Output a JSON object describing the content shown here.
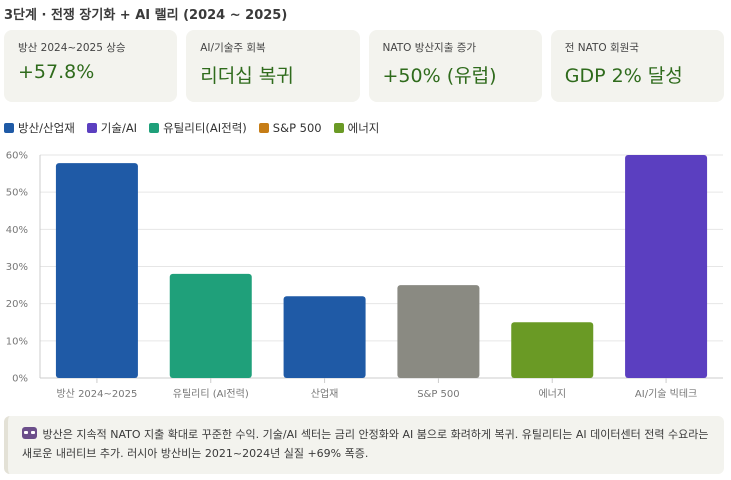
{
  "title": "3단계 · 전쟁 장기화 + AI 랠리 (2024 ~ 2025)",
  "cards": [
    {
      "label": "방산 2024~2025 상승",
      "value": "+57.8%"
    },
    {
      "label": "AI/기술주 회복",
      "value": "리더십 복귀"
    },
    {
      "label": "NATO 방산지출 증가",
      "value": "+50% (유럽)"
    },
    {
      "label": "전 NATO 회원국",
      "value": "GDP 2% 달성"
    }
  ],
  "legend": [
    {
      "label": "방산/산업재",
      "color": "#1f5aa6"
    },
    {
      "label": "기술/AI",
      "color": "#5b3fc0"
    },
    {
      "label": "유틸리티(AI전력)",
      "color": "#1fa07a"
    },
    {
      "label": "S&P 500",
      "color": "#c67d16"
    },
    {
      "label": "에너지",
      "color": "#6a9a25"
    }
  ],
  "chart_data": {
    "type": "bar",
    "categories": [
      "방산 2024~2025",
      "유틸리티 (AI전력)",
      "산업재",
      "S&P 500",
      "에너지",
      "AI/기술 빅테크"
    ],
    "values": [
      57.8,
      28,
      22,
      25,
      15,
      60
    ],
    "colors": [
      "#1f5aa6",
      "#1fa07a",
      "#1f5aa6",
      "#8a8a82",
      "#6a9a25",
      "#5b3fc0"
    ],
    "ylim": [
      0,
      60
    ],
    "yticks": [
      "0%",
      "10%",
      "20%",
      "30%",
      "40%",
      "50%",
      "60%"
    ],
    "grid": true
  },
  "note": {
    "icon": "robot-icon",
    "text": "방산은 지속적 NATO 지출 확대로 꾸준한 수익. 기술/AI 섹터는 금리 안정화와 AI 붐으로 화려하게 복귀. 유틸리티는 AI 데이터센터 전력 수요라는 새로운 내러티브 추가. 러시아 방산비는 2021~2024년 실질 +69% 폭증."
  }
}
